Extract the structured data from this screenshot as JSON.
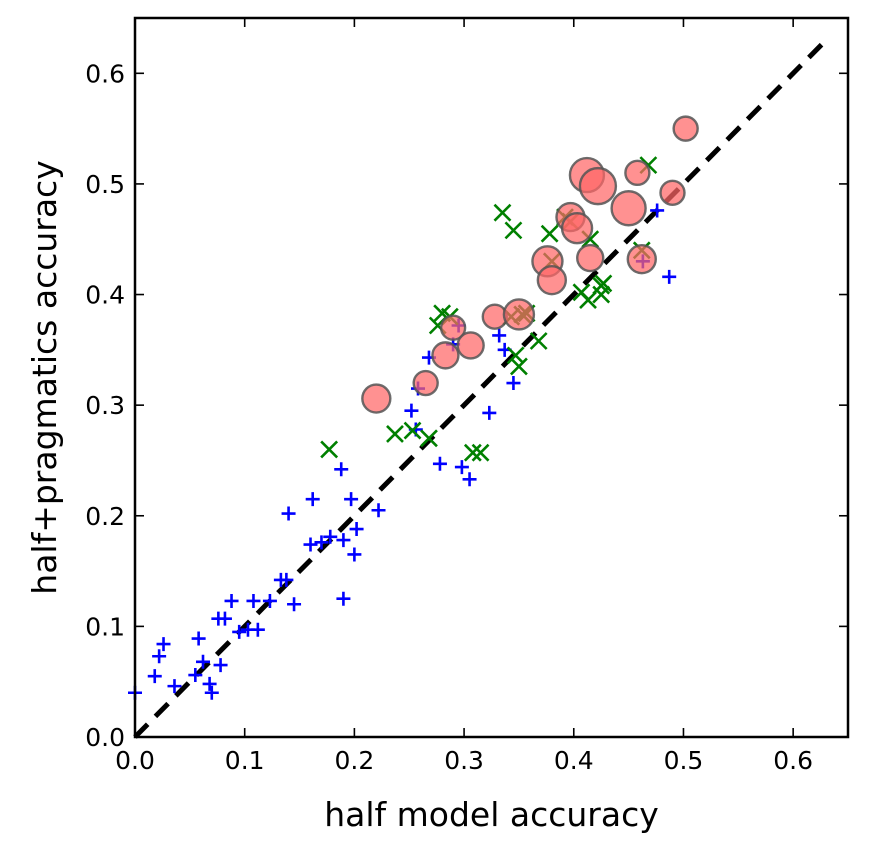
{
  "chart_data": {
    "type": "scatter",
    "title": "",
    "xlabel": "half model accuracy",
    "ylabel": "half+pragmatics accuracy",
    "xlim": [
      0.0,
      0.65
    ],
    "ylim": [
      0.0,
      0.65
    ],
    "xticks": [
      0.0,
      0.1,
      0.2,
      0.3,
      0.4,
      0.5,
      0.6
    ],
    "yticks": [
      0.0,
      0.1,
      0.2,
      0.3,
      0.4,
      0.5,
      0.6
    ],
    "xtick_labels": [
      "0.0",
      "0.1",
      "0.2",
      "0.3",
      "0.4",
      "0.5",
      "0.6"
    ],
    "ytick_labels": [
      "0.0",
      "0.1",
      "0.2",
      "0.3",
      "0.4",
      "0.5",
      "0.6"
    ],
    "grid": false,
    "legend": "none",
    "reference_line": {
      "style": "dashed",
      "color": "#000000",
      "x": [
        0.0,
        0.63
      ],
      "y": [
        0.0,
        0.63
      ]
    },
    "series": [
      {
        "marker": "plus",
        "color": "#0000ff",
        "points": [
          [
            0.0,
            0.04
          ],
          [
            0.018,
            0.055
          ],
          [
            0.022,
            0.073
          ],
          [
            0.026,
            0.084
          ],
          [
            0.036,
            0.046
          ],
          [
            0.055,
            0.056
          ],
          [
            0.058,
            0.089
          ],
          [
            0.062,
            0.068
          ],
          [
            0.068,
            0.048
          ],
          [
            0.07,
            0.04
          ],
          [
            0.076,
            0.107
          ],
          [
            0.078,
            0.065
          ],
          [
            0.082,
            0.107
          ],
          [
            0.088,
            0.123
          ],
          [
            0.095,
            0.095
          ],
          [
            0.103,
            0.097
          ],
          [
            0.108,
            0.123
          ],
          [
            0.112,
            0.097
          ],
          [
            0.123,
            0.123
          ],
          [
            0.133,
            0.142
          ],
          [
            0.138,
            0.142
          ],
          [
            0.14,
            0.202
          ],
          [
            0.145,
            0.12
          ],
          [
            0.16,
            0.174
          ],
          [
            0.162,
            0.215
          ],
          [
            0.17,
            0.176
          ],
          [
            0.178,
            0.181
          ],
          [
            0.188,
            0.242
          ],
          [
            0.19,
            0.125
          ],
          [
            0.19,
            0.178
          ],
          [
            0.197,
            0.215
          ],
          [
            0.2,
            0.165
          ],
          [
            0.202,
            0.188
          ],
          [
            0.222,
            0.205
          ],
          [
            0.252,
            0.295
          ],
          [
            0.256,
            0.278
          ],
          [
            0.258,
            0.315
          ],
          [
            0.268,
            0.343
          ],
          [
            0.278,
            0.247
          ],
          [
            0.29,
            0.355
          ],
          [
            0.295,
            0.372
          ],
          [
            0.298,
            0.244
          ],
          [
            0.305,
            0.233
          ],
          [
            0.323,
            0.293
          ],
          [
            0.332,
            0.363
          ],
          [
            0.337,
            0.35
          ],
          [
            0.345,
            0.32
          ],
          [
            0.463,
            0.43
          ],
          [
            0.476,
            0.476
          ],
          [
            0.487,
            0.416
          ]
        ]
      },
      {
        "marker": "x",
        "color": "#008000",
        "points": [
          [
            0.177,
            0.26
          ],
          [
            0.237,
            0.274
          ],
          [
            0.253,
            0.277
          ],
          [
            0.268,
            0.27
          ],
          [
            0.276,
            0.372
          ],
          [
            0.28,
            0.383
          ],
          [
            0.287,
            0.38
          ],
          [
            0.308,
            0.257
          ],
          [
            0.315,
            0.257
          ],
          [
            0.335,
            0.474
          ],
          [
            0.343,
            0.38
          ],
          [
            0.345,
            0.458
          ],
          [
            0.347,
            0.345
          ],
          [
            0.35,
            0.335
          ],
          [
            0.353,
            0.382
          ],
          [
            0.357,
            0.383
          ],
          [
            0.368,
            0.358
          ],
          [
            0.378,
            0.455
          ],
          [
            0.38,
            0.43
          ],
          [
            0.392,
            0.47
          ],
          [
            0.397,
            0.466
          ],
          [
            0.407,
            0.402
          ],
          [
            0.413,
            0.395
          ],
          [
            0.415,
            0.45
          ],
          [
            0.425,
            0.4
          ],
          [
            0.425,
            0.408
          ],
          [
            0.427,
            0.41
          ],
          [
            0.462,
            0.44
          ],
          [
            0.468,
            0.517
          ]
        ]
      },
      {
        "marker": "circle",
        "color": "#ff6666",
        "points": [
          [
            0.22,
            0.306,
            14
          ],
          [
            0.265,
            0.32,
            12
          ],
          [
            0.283,
            0.345,
            13
          ],
          [
            0.29,
            0.37,
            12
          ],
          [
            0.306,
            0.354,
            13
          ],
          [
            0.328,
            0.38,
            12
          ],
          [
            0.35,
            0.382,
            15
          ],
          [
            0.376,
            0.43,
            15
          ],
          [
            0.38,
            0.413,
            14
          ],
          [
            0.397,
            0.47,
            14
          ],
          [
            0.403,
            0.46,
            15
          ],
          [
            0.412,
            0.508,
            17
          ],
          [
            0.415,
            0.433,
            13
          ],
          [
            0.422,
            0.498,
            18
          ],
          [
            0.45,
            0.478,
            17
          ],
          [
            0.458,
            0.51,
            12
          ],
          [
            0.462,
            0.432,
            14
          ],
          [
            0.49,
            0.492,
            12
          ],
          [
            0.502,
            0.55,
            12
          ]
        ]
      }
    ]
  }
}
